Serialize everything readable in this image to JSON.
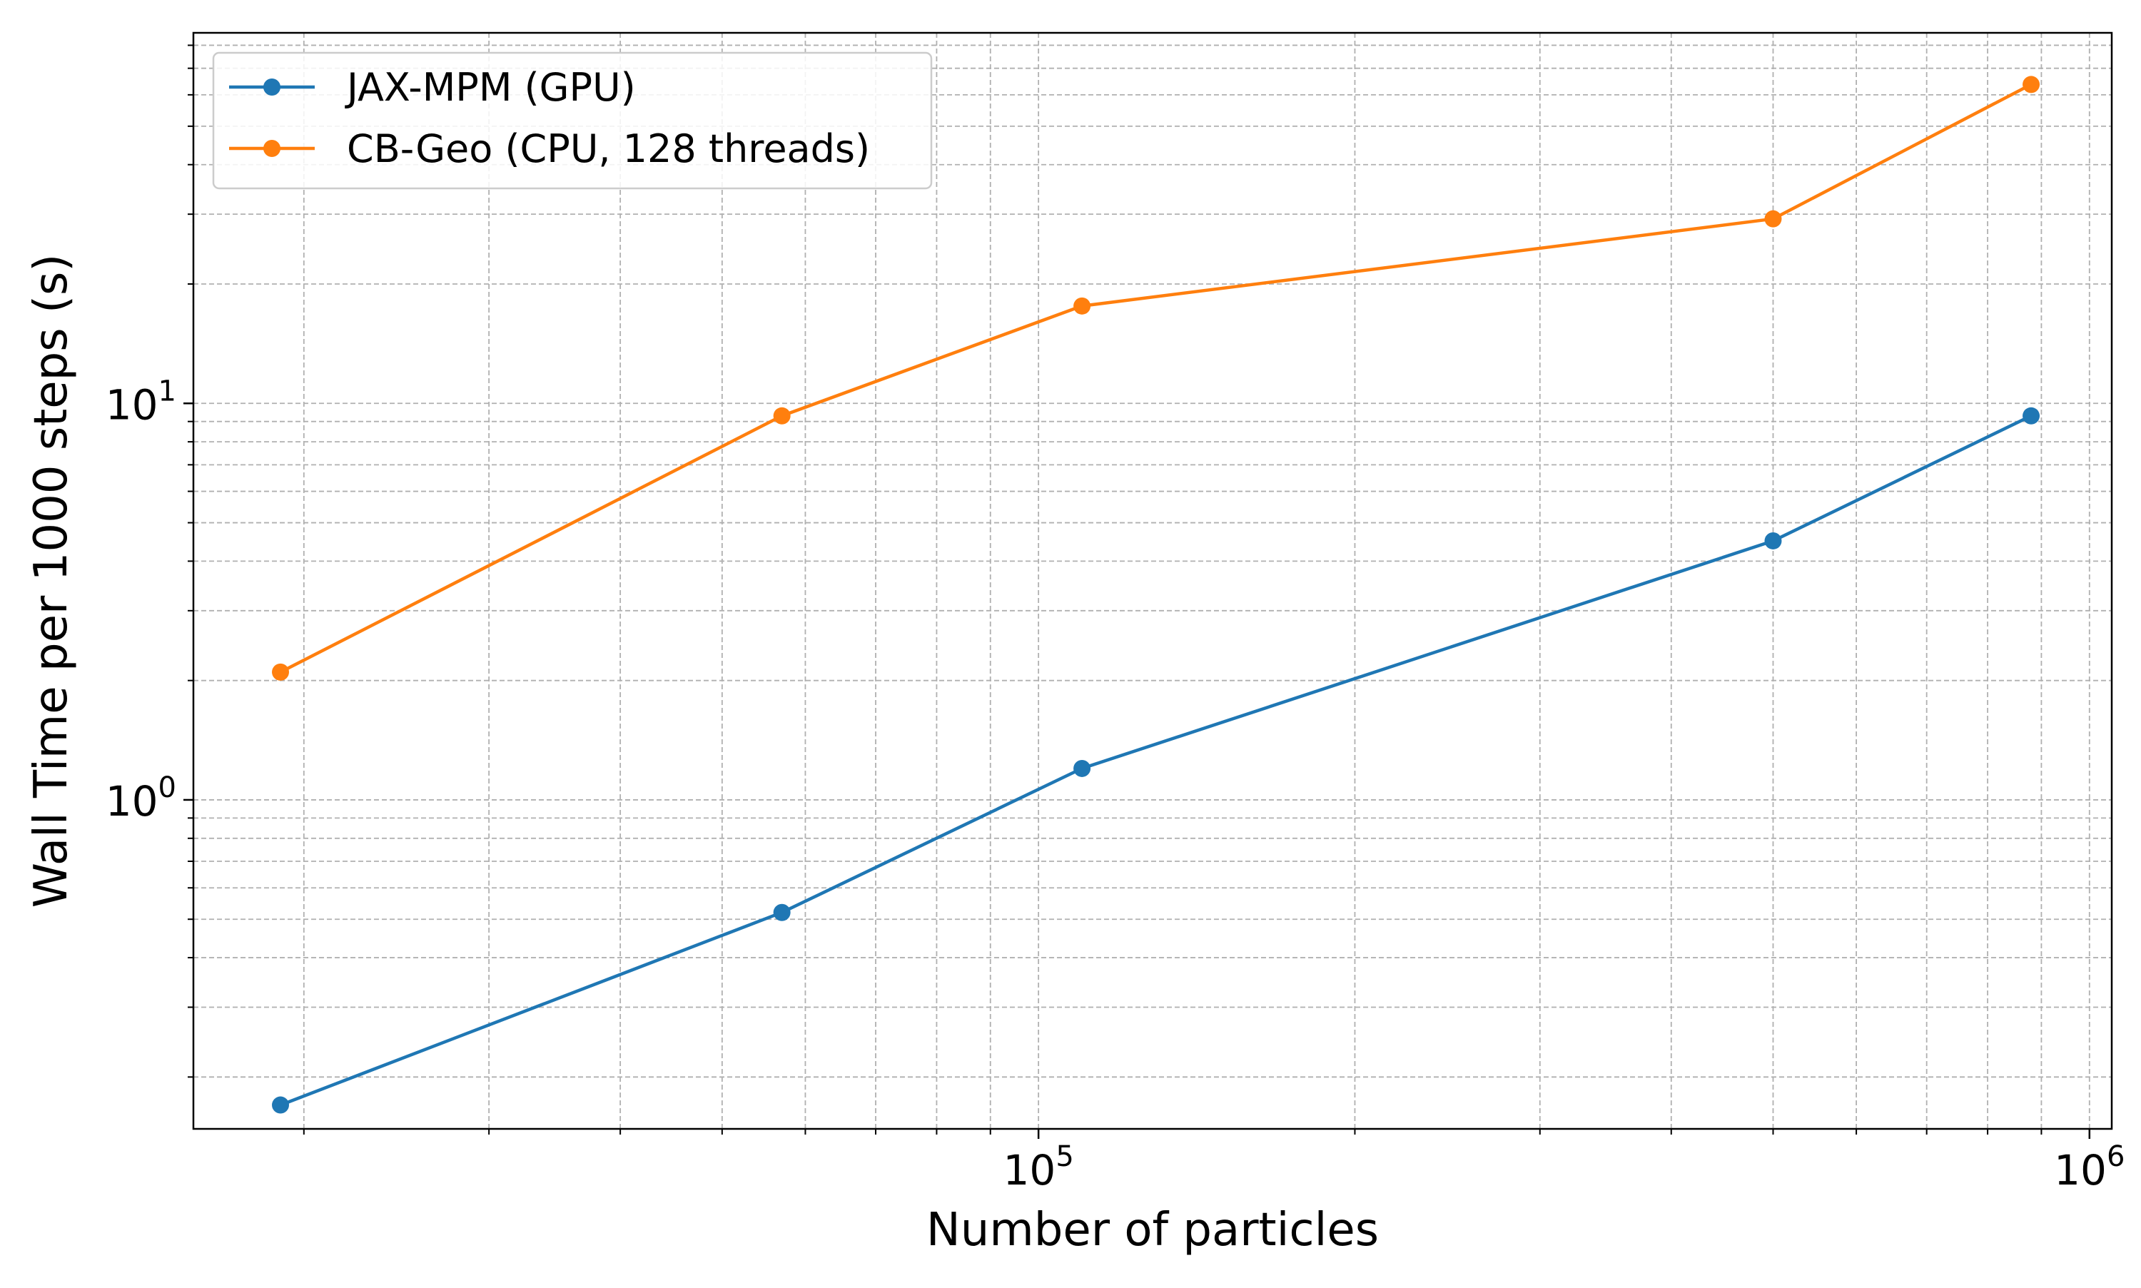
{
  "chart_data": {
    "type": "line",
    "title": "",
    "xlabel": "Number of particles",
    "ylabel": "Wall Time per 1000 steps (s)",
    "xscale": "log",
    "yscale": "log",
    "xlim": [
      15700,
      1050000
    ],
    "ylim": [
      0.148,
      86
    ],
    "grid": true,
    "legend_position": "top-left",
    "x_major_ticks": [
      {
        "base": "10",
        "exp": "5",
        "value": 100000
      },
      {
        "base": "10",
        "exp": "6",
        "value": 1000000
      }
    ],
    "y_major_ticks": [
      {
        "base": "10",
        "exp": "0",
        "value": 1
      },
      {
        "base": "10",
        "exp": "1",
        "value": 10
      }
    ],
    "series": [
      {
        "name": "JAX-MPM (GPU)",
        "color": "#1f77b4",
        "x": [
          19000,
          57000,
          110000,
          500000,
          880000
        ],
        "y": [
          0.17,
          0.52,
          1.2,
          4.5,
          9.3
        ]
      },
      {
        "name": "CB-Geo (CPU, 128 threads)",
        "color": "#ff7f0e",
        "x": [
          19000,
          57000,
          110000,
          500000,
          880000
        ],
        "y": [
          2.1,
          9.3,
          17.6,
          29.2,
          63.7
        ]
      }
    ]
  }
}
